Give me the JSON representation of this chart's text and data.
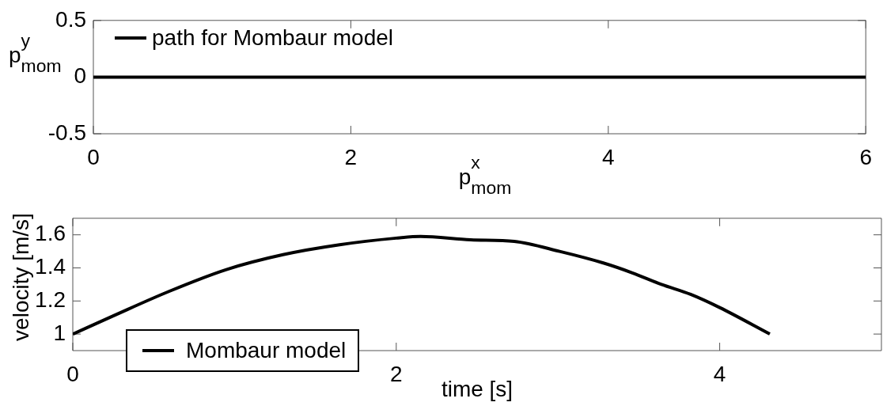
{
  "chart_data": [
    {
      "type": "line",
      "xlabel": "p$^{x}$$_{mom}$",
      "ylabel": "p$^{y}$$_{mom}$",
      "x": [
        0,
        6
      ],
      "series": [
        {
          "name": "path for Mombaur model",
          "color": "#000000",
          "values": [
            0,
            0
          ]
        }
      ],
      "xlim": [
        0,
        6
      ],
      "xticks": [
        0,
        2,
        4,
        6
      ],
      "ylim": [
        -0.5,
        0.5
      ],
      "yticks": [
        -0.5,
        0,
        0.5
      ],
      "grid": false,
      "legend": "top left",
      "marker": "none",
      "line_style": "solid"
    },
    {
      "type": "line",
      "xlabel": "time [s]",
      "ylabel": "velocity [m/s]",
      "x": [
        0,
        0.25,
        0.6,
        0.95,
        1.3,
        1.65,
        2,
        2.15,
        2.46,
        2.73,
        3.01,
        3.28,
        3.46,
        3.64,
        3.82,
        4,
        4.31
      ],
      "series": [
        {
          "name": "Mombaur model",
          "color": "#000000",
          "values": [
            1,
            1.11,
            1.26,
            1.39,
            1.48,
            1.54,
            1.58,
            1.59,
            1.57,
            1.56,
            1.5,
            1.43,
            1.37,
            1.3,
            1.24,
            1.16,
            1
          ]
        }
      ],
      "xlim": [
        0,
        5
      ],
      "xticks": [
        0,
        2,
        4
      ],
      "ylim": [
        0.9,
        1.7
      ],
      "yticks": [
        1,
        1.2,
        1.4,
        1.6
      ],
      "grid": false,
      "legend": "bottom left",
      "marker": "none",
      "line_style": "solid"
    }
  ]
}
